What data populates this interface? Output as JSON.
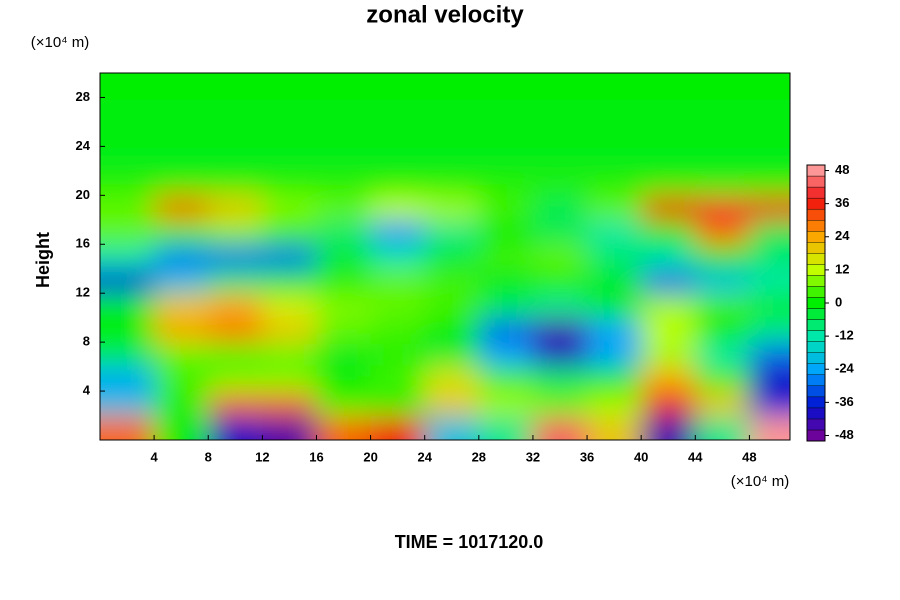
{
  "chart_data": {
    "type": "heatmap",
    "title": "zonal velocity",
    "xlabel_unit": "(×10⁴ m)",
    "ylabel_unit": "(×10⁴ m)",
    "ylabel": "Height",
    "footer": "TIME = 1017120.0",
    "x": [
      2,
      6,
      10,
      14,
      18,
      22,
      26,
      30,
      34,
      38,
      42,
      46,
      50
    ],
    "y": [
      1,
      3,
      5,
      7,
      9,
      11,
      13,
      15,
      17,
      19,
      21,
      23,
      25,
      27,
      29
    ],
    "z": [
      [
        30,
        0,
        -40,
        -46,
        30,
        36,
        -20,
        -10,
        44,
        20,
        -44,
        -10,
        48
      ],
      [
        -20,
        2,
        30,
        30,
        4,
        2,
        20,
        10,
        6,
        10,
        36,
        20,
        -36
      ],
      [
        -24,
        4,
        8,
        8,
        0,
        4,
        16,
        4,
        -6,
        0,
        24,
        4,
        -40
      ],
      [
        -6,
        6,
        4,
        6,
        -2,
        2,
        -4,
        -24,
        -40,
        -24,
        10,
        -12,
        -30
      ],
      [
        0,
        24,
        28,
        20,
        6,
        4,
        0,
        -30,
        -44,
        -24,
        12,
        0,
        -10
      ],
      [
        0,
        20,
        24,
        14,
        8,
        6,
        4,
        -6,
        -10,
        0,
        10,
        4,
        0
      ],
      [
        -36,
        -20,
        -8,
        -4,
        2,
        6,
        4,
        -2,
        2,
        -4,
        -30,
        -20,
        -12
      ],
      [
        -12,
        -28,
        -30,
        -30,
        -4,
        -12,
        -4,
        4,
        6,
        -8,
        -12,
        0,
        -8
      ],
      [
        6,
        4,
        8,
        4,
        -8,
        -26,
        -10,
        0,
        -6,
        -12,
        0,
        30,
        -6
      ],
      [
        6,
        30,
        20,
        8,
        6,
        12,
        10,
        4,
        -6,
        6,
        36,
        40,
        36
      ],
      [
        2,
        2,
        2,
        2,
        2,
        2,
        2,
        2,
        2,
        2,
        2,
        2,
        2
      ],
      [
        -2,
        -2,
        -2,
        -2,
        -2,
        -2,
        -2,
        -2,
        -2,
        -2,
        -2,
        -2,
        -2
      ],
      [
        0,
        0,
        0,
        0,
        0,
        0,
        0,
        0,
        0,
        0,
        0,
        0,
        0
      ],
      [
        -1,
        -1,
        -1,
        -1,
        -1,
        -1,
        -1,
        -1,
        -1,
        -1,
        -1,
        -1,
        -1
      ],
      [
        0,
        0,
        0,
        0,
        0,
        0,
        0,
        0,
        0,
        0,
        0,
        0,
        0
      ]
    ],
    "xlim": [
      0,
      51
    ],
    "xticks": [
      4,
      8,
      12,
      16,
      20,
      24,
      28,
      32,
      36,
      40,
      44,
      48
    ],
    "ylim": [
      0,
      30
    ],
    "yticks": [
      4,
      8,
      12,
      16,
      20,
      24,
      28
    ],
    "clim": [
      -50,
      50
    ],
    "cticks": [
      -48,
      -36,
      -24,
      -12,
      0,
      12,
      24,
      36,
      48
    ],
    "colorscale": [
      "#800090",
      "#0010d0",
      "#00a0ff",
      "#00e8b0",
      "#00ee00",
      "#c8ff00",
      "#ffa000",
      "#f01010",
      "#ffb0b0"
    ]
  }
}
